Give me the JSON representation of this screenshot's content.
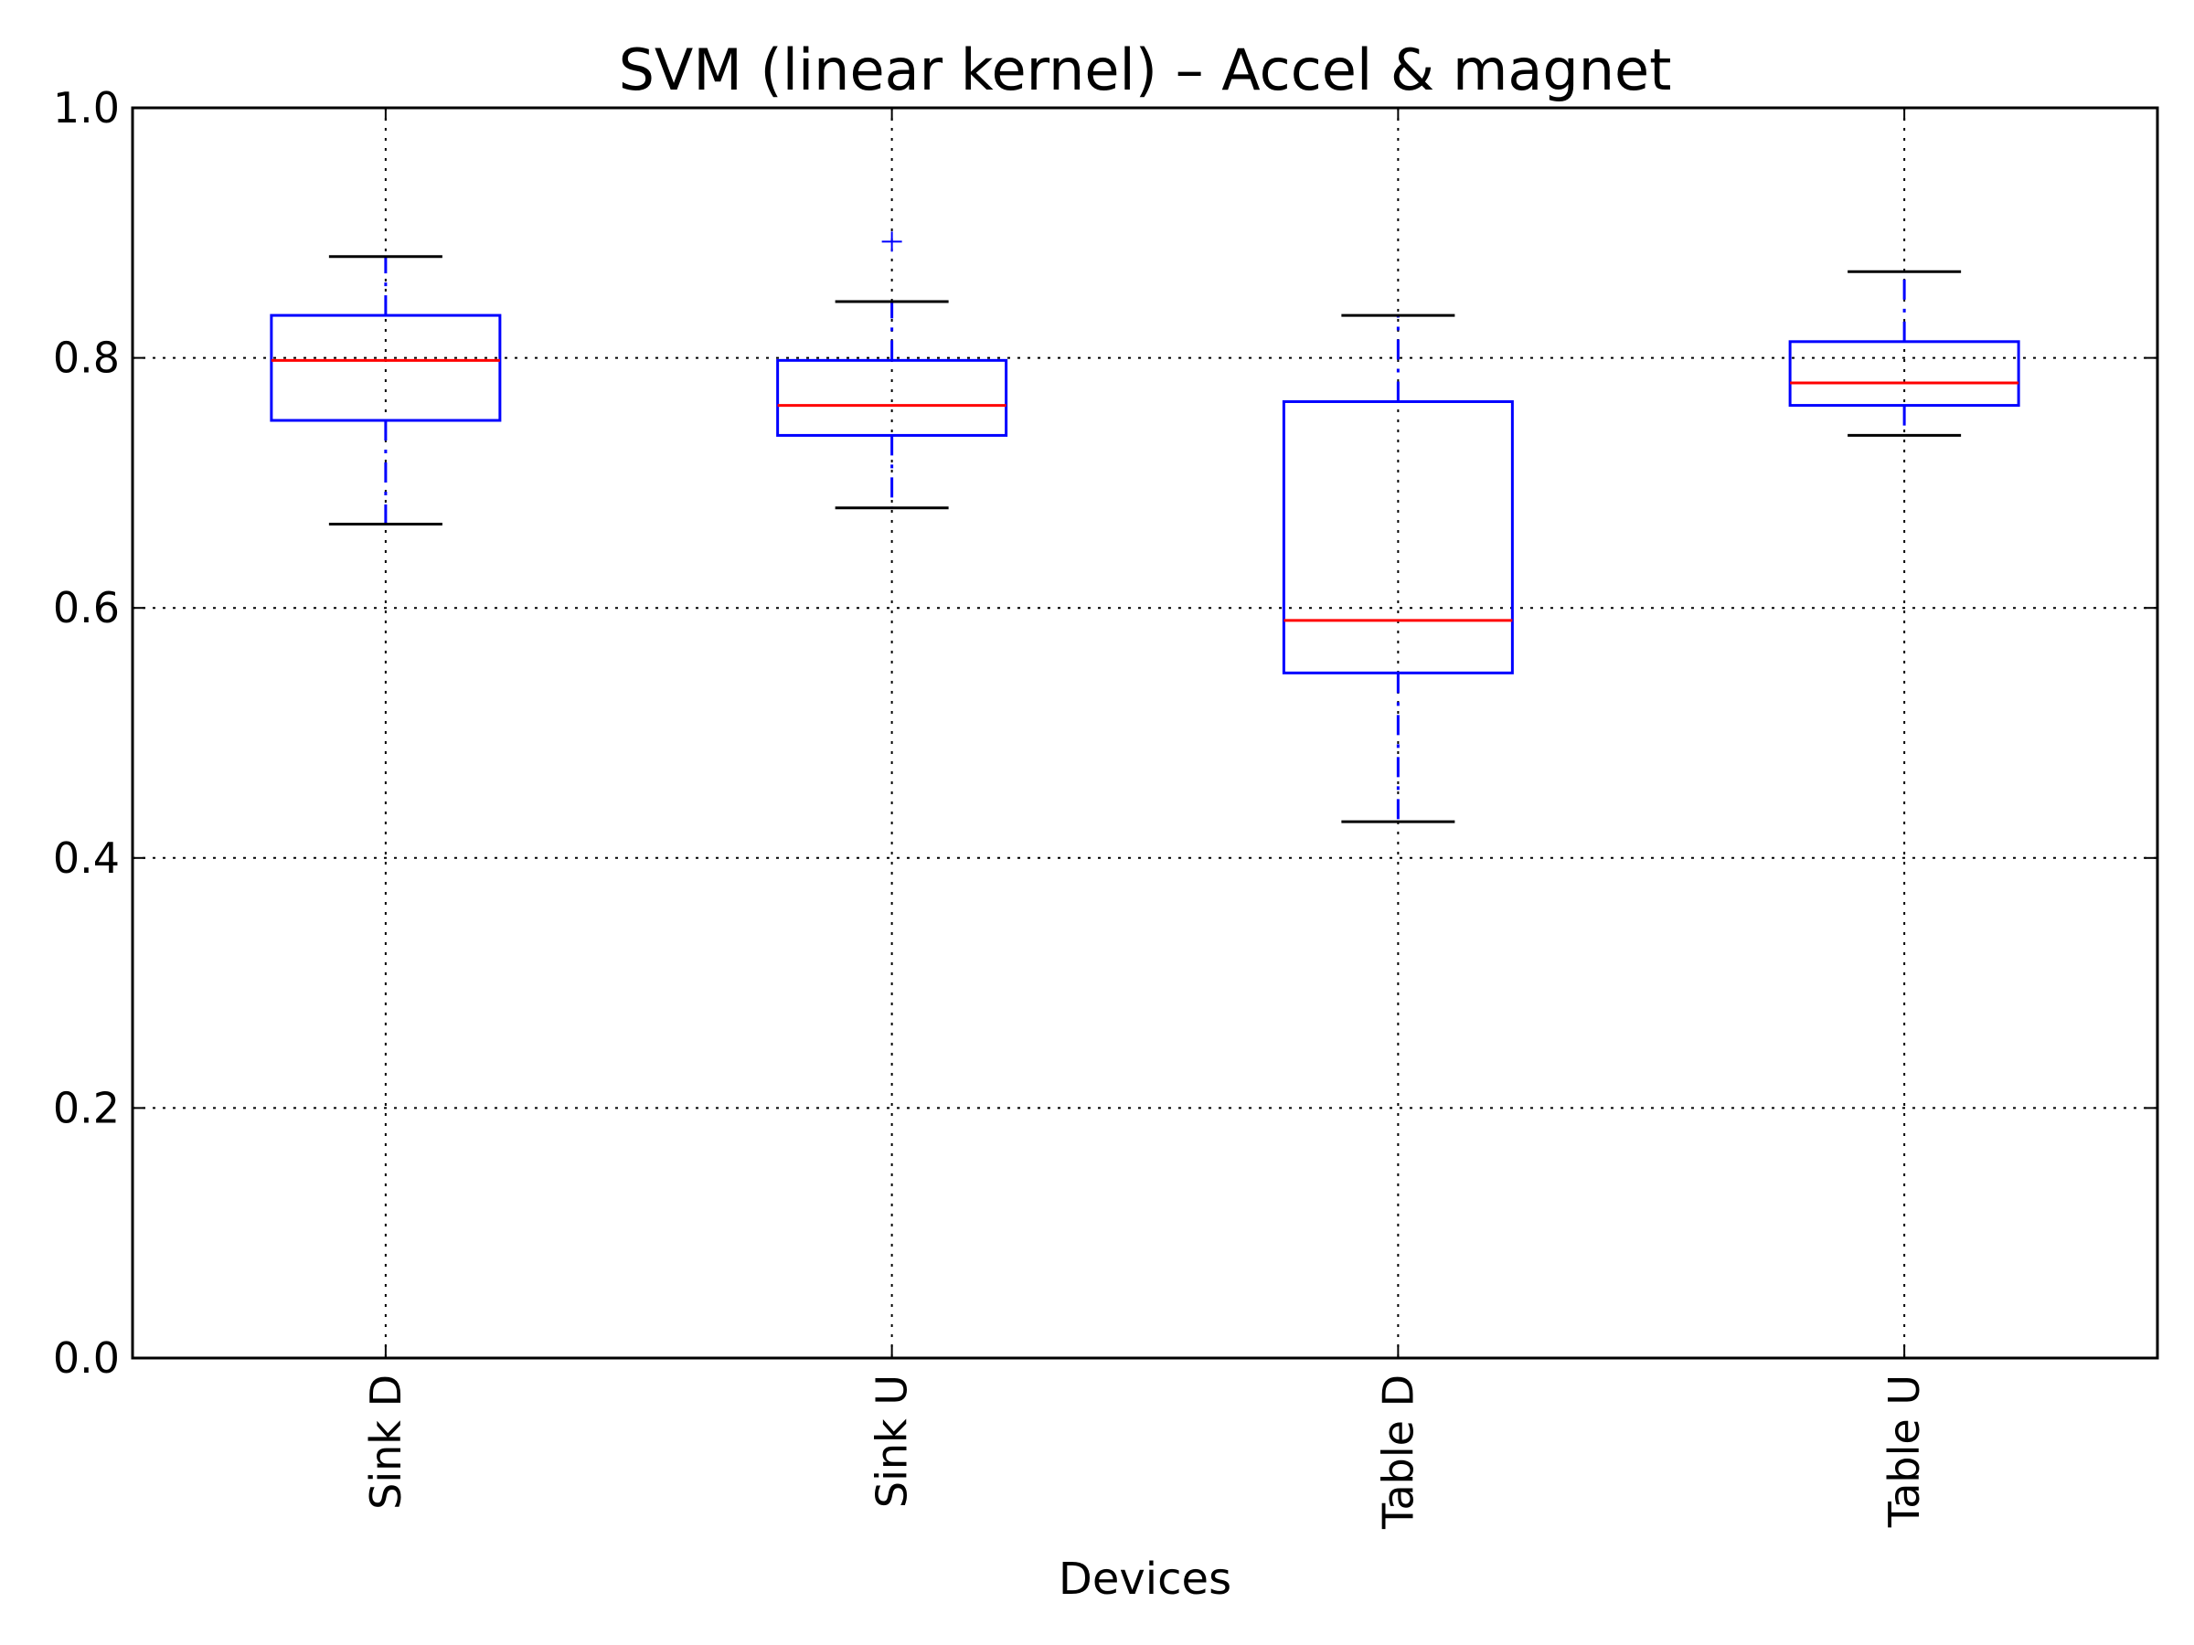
{
  "chart_data": {
    "type": "box",
    "title": "SVM (linear kernel) – Accel & magnet",
    "xlabel": "Devices",
    "ylabel": "",
    "ylim": [
      0.0,
      1.0
    ],
    "yticks": [
      "0.0",
      "0.2",
      "0.4",
      "0.6",
      "0.8",
      "1.0"
    ],
    "grid": true,
    "categories": [
      "Sink D",
      "Sink U",
      "Table D",
      "Table U"
    ],
    "boxes": [
      {
        "label": "Sink D",
        "whisker_low": 0.667,
        "q1": 0.75,
        "median": 0.798,
        "q3": 0.834,
        "whisker_high": 0.881,
        "outliers": []
      },
      {
        "label": "Sink U",
        "whisker_low": 0.68,
        "q1": 0.738,
        "median": 0.762,
        "q3": 0.798,
        "whisker_high": 0.845,
        "outliers": [
          0.893
        ]
      },
      {
        "label": "Table D",
        "whisker_low": 0.429,
        "q1": 0.548,
        "median": 0.59,
        "q3": 0.765,
        "whisker_high": 0.834,
        "outliers": []
      },
      {
        "label": "Table U",
        "whisker_low": 0.738,
        "q1": 0.762,
        "median": 0.78,
        "q3": 0.813,
        "whisker_high": 0.869,
        "outliers": []
      }
    ],
    "colors": {
      "box": "#0000ff",
      "median": "#ff0000",
      "cap": "#000000",
      "outlier": "#0000ff"
    }
  }
}
